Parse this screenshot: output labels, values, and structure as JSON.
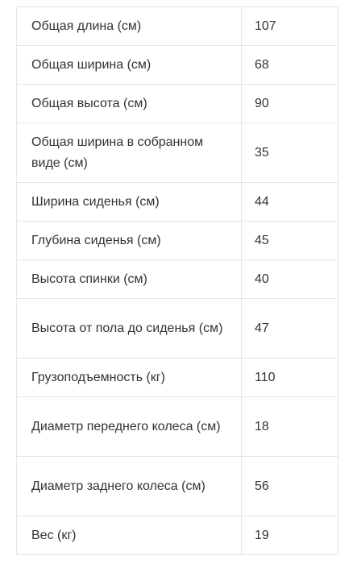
{
  "specs": {
    "rows": [
      {
        "label": "Общая длина (см)",
        "value": "107"
      },
      {
        "label": "Общая ширина (см)",
        "value": "68"
      },
      {
        "label": "Общая высота (см)",
        "value": "90"
      },
      {
        "label": "Общая ширина в собранном виде (см)",
        "value": "35"
      },
      {
        "label": "Ширина сиденья (см)",
        "value": "44"
      },
      {
        "label": "Глубина сиденья (см)",
        "value": "45"
      },
      {
        "label": "Высота спинки (см)",
        "value": "40"
      },
      {
        "label": "Высота от пола до сиденья (см)",
        "value": "47"
      },
      {
        "label": "Грузоподъемность (кг)",
        "value": "110"
      },
      {
        "label": "Диаметр переднего колеса (см)",
        "value": "18"
      },
      {
        "label": "Диаметр заднего колеса (см)",
        "value": "56"
      },
      {
        "label": "Вес (кг)",
        "value": "19"
      }
    ]
  }
}
